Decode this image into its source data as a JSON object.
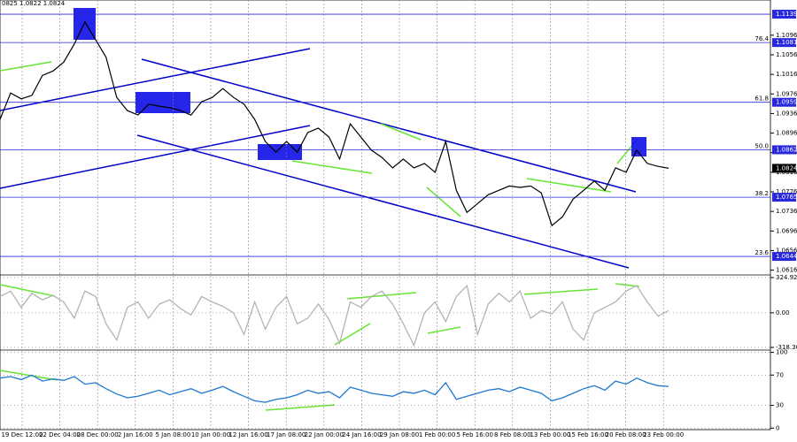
{
  "header": "0825 1.0822 1.0824",
  "time_axis": [
    "19 Dec 12:00",
    "22 Dec 04:00",
    "28 Dec 00:00",
    "2 Jan 16:00",
    "5 Jan 08:00",
    "10 Jan 00:00",
    "12 Jan 16:00",
    "17 Jan 08:00",
    "22 Jan 00:00",
    "24 Jan 16:00",
    "29 Jan 08:00",
    "1 Feb 00:00",
    "5 Feb 16:00",
    "8 Feb 08:00",
    "13 Feb 00:00",
    "15 Feb 16:00",
    "20 Feb 08:00",
    "23 Feb 00:00"
  ],
  "chart_data": [
    {
      "type": "line",
      "color": "#000000",
      "ylim": [
        1.0608,
        1.1168
      ],
      "yticks": [
        1.1096,
        1.1056,
        1.1016,
        1.0976,
        1.0936,
        1.0896,
        1.0856,
        1.0816,
        1.0776,
        1.0736,
        1.0696,
        1.0656,
        1.0616
      ],
      "levels": [
        1.1139,
        1.1081,
        1.0959,
        1.0862,
        1.0765,
        1.0644
      ],
      "current": 1.0824,
      "fibs": [
        {
          "ratio": 76.4,
          "price": 1.1081
        },
        {
          "ratio": 61.8,
          "price": 1.0959
        },
        {
          "ratio": {
            "value": 50,
            "label": "50.0"
          },
          "price": 1.0862
        },
        {
          "ratio": 38.2,
          "price": 1.0765
        },
        {
          "ratio": 23.6,
          "price": 1.0644
        }
      ],
      "values": [
        1.0924,
        1.0978,
        1.0966,
        1.0973,
        1.1014,
        1.1023,
        1.1041,
        1.1078,
        1.1123,
        1.1087,
        1.1051,
        1.0969,
        1.0942,
        1.0933,
        1.0955,
        1.0951,
        1.0948,
        1.0942,
        1.0933,
        1.096,
        1.0969,
        1.0987,
        1.0969,
        1.0955,
        1.0924,
        1.0879,
        1.0857,
        1.0879,
        1.0857,
        1.0897,
        1.0906,
        1.0888,
        1.0843,
        1.0915,
        1.0888,
        1.0861,
        1.0846,
        1.0825,
        1.0843,
        1.0825,
        1.0834,
        1.0816,
        1.0879,
        1.0779,
        1.0734,
        1.0752,
        1.077,
        1.0779,
        1.0788,
        1.0785,
        1.0788,
        1.0774,
        1.0707,
        1.0725,
        1.0761,
        1.0779,
        1.0798,
        1.0779,
        1.0825,
        1.0816,
        1.0861,
        1.0834,
        1.0828,
        1.0824
      ]
    },
    {
      "type": "line",
      "color": "#b4b4b4",
      "ylim": [
        -343,
        349
      ],
      "yticks": [
        324.9241,
        {
          "value": 0,
          "label": "0.00"
        },
        -318.308
      ],
      "values": [
        150,
        200,
        50,
        180,
        120,
        160,
        100,
        -50,
        200,
        150,
        -100,
        -250,
        50,
        100,
        -50,
        80,
        120,
        40,
        -20,
        150,
        100,
        60,
        0,
        -200,
        100,
        -150,
        50,
        150,
        -100,
        -50,
        80,
        -60,
        -280,
        100,
        50,
        150,
        200,
        80,
        -100,
        -300,
        0,
        100,
        -80,
        150,
        250,
        -200,
        80,
        180,
        100,
        200,
        -50,
        20,
        -10,
        100,
        -150,
        -250,
        0,
        50,
        100,
        200,
        250,
        100,
        -30,
        20
      ]
    },
    {
      "type": "line",
      "color": "#1e78d2",
      "ylim": [
        -2,
        103
      ],
      "yticks": [
        100,
        70,
        30,
        0
      ],
      "values": [
        66,
        68,
        64,
        70,
        62,
        65,
        63,
        68,
        58,
        60,
        52,
        45,
        40,
        42,
        46,
        50,
        44,
        48,
        52,
        46,
        50,
        55,
        48,
        42,
        36,
        34,
        38,
        40,
        44,
        50,
        46,
        48,
        40,
        54,
        50,
        46,
        44,
        42,
        48,
        46,
        50,
        44,
        60,
        38,
        42,
        46,
        50,
        52,
        48,
        54,
        50,
        46,
        36,
        40,
        46,
        52,
        56,
        50,
        62,
        58,
        66,
        60,
        56,
        55
      ]
    }
  ]
}
